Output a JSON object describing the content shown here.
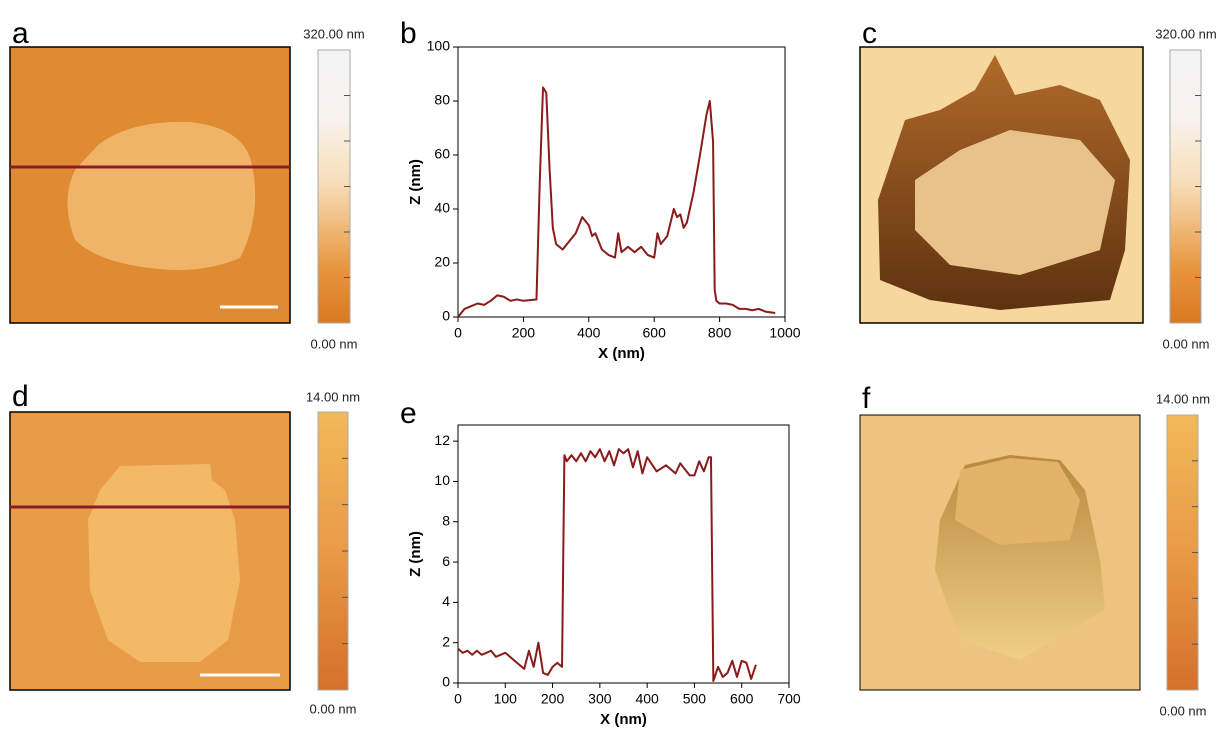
{
  "panels": [
    {
      "label": "a",
      "colorbar": {
        "max": "320.00 nm",
        "min": "0.00 nm"
      }
    },
    {
      "label": "c",
      "colorbar": {
        "max": "320.00 nm",
        "min": "0.00 nm"
      }
    },
    {
      "label": "d",
      "colorbar": {
        "max": "14.00 nm",
        "min": "0.00 nm"
      }
    },
    {
      "label": "f",
      "colorbar": {
        "max": "14.00 nm",
        "min": "0.00 nm"
      }
    }
  ],
  "chart_data": [
    {
      "type": "line",
      "label": "b",
      "xlabel": "X (nm)",
      "ylabel": "Z (nm)",
      "color": "#8b1a1a",
      "x": [
        0,
        20,
        40,
        60,
        80,
        100,
        120,
        140,
        160,
        180,
        200,
        240,
        250,
        260,
        270,
        280,
        290,
        300,
        320,
        340,
        360,
        380,
        400,
        410,
        420,
        440,
        460,
        480,
        490,
        500,
        520,
        540,
        560,
        580,
        600,
        610,
        620,
        640,
        660,
        670,
        680,
        690,
        700,
        720,
        740,
        760,
        770,
        780,
        785,
        790,
        800,
        820,
        840,
        860,
        880,
        900,
        920,
        940,
        970
      ],
      "values": [
        0,
        3,
        4,
        5,
        4.5,
        6,
        8,
        7.5,
        6,
        6.5,
        6,
        6.5,
        50,
        85,
        83,
        55,
        33,
        27,
        25,
        28,
        31,
        37,
        34,
        30,
        31,
        25,
        23,
        22,
        31,
        24,
        26,
        24,
        26,
        23,
        22,
        31,
        27,
        30,
        40,
        37,
        38,
        33,
        35,
        46,
        60,
        75,
        80,
        65,
        10,
        6,
        5,
        5,
        4.5,
        3,
        3,
        2.5,
        3,
        2,
        1.5
      ],
      "xlim": [
        0,
        1000
      ],
      "xticks": [
        0,
        200,
        400,
        600,
        800,
        1000
      ],
      "ylim": [
        0,
        100
      ],
      "yticks": [
        0,
        20,
        40,
        60,
        80,
        100
      ]
    },
    {
      "type": "line",
      "label": "e",
      "xlabel": "X (nm)",
      "ylabel": "Z (nm)",
      "color": "#8b1a1a",
      "x": [
        0,
        10,
        20,
        30,
        40,
        50,
        60,
        70,
        80,
        100,
        120,
        130,
        140,
        150,
        160,
        170,
        180,
        190,
        200,
        210,
        220,
        225,
        230,
        240,
        250,
        260,
        270,
        280,
        290,
        300,
        310,
        320,
        330,
        340,
        350,
        360,
        370,
        380,
        390,
        400,
        420,
        440,
        460,
        470,
        480,
        490,
        500,
        510,
        520,
        530,
        535,
        540,
        550,
        560,
        570,
        580,
        590,
        600,
        610,
        620,
        630
      ],
      "values": [
        1.7,
        1.5,
        1.6,
        1.4,
        1.6,
        1.4,
        1.5,
        1.6,
        1.3,
        1.5,
        1.1,
        0.9,
        0.7,
        1.6,
        0.8,
        2.0,
        0.5,
        0.4,
        0.8,
        1.0,
        0.8,
        11.3,
        11.0,
        11.3,
        11.0,
        11.4,
        11.0,
        11.5,
        11.2,
        11.6,
        11.0,
        11.5,
        10.8,
        11.6,
        11.4,
        11.6,
        10.7,
        11.5,
        10.4,
        11.2,
        10.5,
        10.8,
        10.4,
        10.9,
        10.6,
        10.3,
        10.3,
        11.0,
        10.5,
        11.2,
        11.2,
        0.1,
        0.8,
        0.3,
        0.5,
        1.1,
        0.3,
        1.1,
        1.0,
        0.2,
        0.9
      ],
      "xlim": [
        0,
        700
      ],
      "xticks": [
        0,
        100,
        200,
        300,
        400,
        500,
        600,
        700
      ],
      "ylim": [
        0,
        12.8
      ],
      "yticks": [
        0,
        2,
        4,
        6,
        8,
        10,
        12
      ]
    }
  ]
}
